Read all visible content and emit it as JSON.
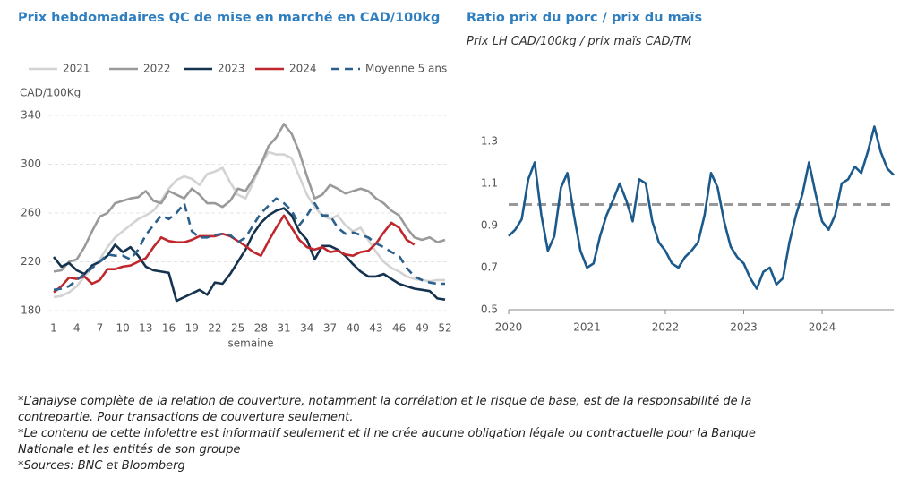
{
  "chart_data": [
    {
      "type": "line",
      "title": "Prix hebdomadaires QC de mise en marché en CAD/100kg",
      "y_label": "CAD/100Kg",
      "x_label": "semaine",
      "x": [
        1,
        2,
        3,
        4,
        5,
        6,
        7,
        8,
        9,
        10,
        11,
        12,
        13,
        14,
        15,
        16,
        17,
        18,
        19,
        20,
        21,
        22,
        23,
        24,
        25,
        26,
        27,
        28,
        29,
        30,
        31,
        32,
        33,
        34,
        35,
        36,
        37,
        38,
        39,
        40,
        41,
        42,
        43,
        44,
        45,
        46,
        47,
        48,
        49,
        50,
        51,
        52
      ],
      "xlim": [
        1,
        52
      ],
      "xticks": [
        1,
        4,
        7,
        10,
        13,
        16,
        19,
        22,
        25,
        28,
        31,
        34,
        37,
        40,
        43,
        46,
        49,
        52
      ],
      "ylim": [
        180,
        340
      ],
      "yticks": [
        180,
        220,
        260,
        300,
        340
      ],
      "grid": true,
      "series": [
        {
          "name": "2021",
          "color": "#d3d3d3",
          "dashed": false,
          "values": [
            191,
            192,
            195,
            200,
            208,
            215,
            222,
            232,
            240,
            245,
            250,
            255,
            258,
            262,
            270,
            280,
            287,
            290,
            288,
            283,
            292,
            294,
            297,
            285,
            275,
            272,
            285,
            300,
            310,
            308,
            308,
            305,
            290,
            275,
            265,
            258,
            255,
            258,
            250,
            245,
            248,
            238,
            228,
            220,
            215,
            212,
            208,
            206,
            205,
            204,
            205,
            205
          ]
        },
        {
          "name": "2022",
          "color": "#9a9a9a",
          "dashed": false,
          "values": [
            212,
            213,
            220,
            222,
            232,
            245,
            257,
            260,
            268,
            270,
            272,
            273,
            278,
            270,
            268,
            278,
            275,
            272,
            280,
            275,
            268,
            268,
            265,
            270,
            280,
            278,
            288,
            300,
            315,
            322,
            333,
            325,
            310,
            290,
            272,
            275,
            283,
            280,
            276,
            278,
            280,
            278,
            272,
            268,
            262,
            258,
            248,
            240,
            238,
            240,
            236,
            238
          ]
        },
        {
          "name": "2023",
          "color": "#15324f",
          "dashed": false,
          "values": [
            224,
            216,
            219,
            213,
            210,
            217,
            220,
            225,
            234,
            228,
            232,
            225,
            216,
            213,
            212,
            211,
            188,
            191,
            194,
            197,
            193,
            203,
            202,
            210,
            220,
            230,
            243,
            252,
            258,
            262,
            264,
            258,
            245,
            238,
            222,
            233,
            233,
            230,
            225,
            218,
            212,
            208,
            208,
            210,
            206,
            202,
            200,
            198,
            197,
            196,
            190,
            189
          ]
        },
        {
          "name": "2024",
          "color": "#c0272d",
          "dashed": false,
          "values": [
            195,
            200,
            207,
            206,
            208,
            202,
            205,
            214,
            214,
            216,
            217,
            220,
            223,
            232,
            240,
            237,
            236,
            236,
            238,
            241,
            241,
            241,
            243,
            241,
            237,
            233,
            228,
            225,
            237,
            248,
            258,
            248,
            238,
            232,
            230,
            232,
            228,
            229,
            226,
            225,
            228,
            229,
            235,
            244,
            252,
            248,
            238,
            234,
            null,
            null,
            null,
            null
          ]
        },
        {
          "name": "Moyenne 5 ans",
          "color": "#2b5f8c",
          "dashed": true,
          "values": [
            197,
            198,
            200,
            205,
            210,
            215,
            220,
            226,
            225,
            225,
            222,
            230,
            242,
            250,
            258,
            255,
            260,
            268,
            245,
            240,
            240,
            242,
            243,
            242,
            236,
            240,
            250,
            260,
            266,
            272,
            268,
            262,
            250,
            258,
            268,
            258,
            258,
            248,
            243,
            244,
            242,
            240,
            235,
            232,
            228,
            225,
            215,
            208,
            205,
            203,
            202,
            202
          ]
        }
      ]
    },
    {
      "type": "line",
      "title": "Ratio prix du porc / prix du maïs",
      "subtitle": "Prix LH CAD/100kg / prix maïs CAD/TM",
      "x": [
        2020,
        2020.083,
        2020.167,
        2020.25,
        2020.333,
        2020.417,
        2020.5,
        2020.583,
        2020.667,
        2020.75,
        2020.833,
        2020.917,
        2021,
        2021.083,
        2021.167,
        2021.25,
        2021.333,
        2021.417,
        2021.5,
        2021.583,
        2021.667,
        2021.75,
        2021.833,
        2021.917,
        2022,
        2022.083,
        2022.167,
        2022.25,
        2022.333,
        2022.417,
        2022.5,
        2022.583,
        2022.667,
        2022.75,
        2022.833,
        2022.917,
        2023,
        2023.083,
        2023.167,
        2023.25,
        2023.333,
        2023.417,
        2023.5,
        2023.583,
        2023.667,
        2023.75,
        2023.833,
        2023.917,
        2024,
        2024.083,
        2024.167,
        2024.25,
        2024.333,
        2024.417,
        2024.5,
        2024.583,
        2024.667,
        2024.75,
        2024.833,
        2024.914
      ],
      "xlim": [
        2020,
        2024.914
      ],
      "xticks": [
        2020,
        2021,
        2022,
        2023,
        2024
      ],
      "ylim": [
        0.5,
        1.4
      ],
      "yticks": [
        0.5,
        0.7,
        0.9,
        1.1,
        1.3
      ],
      "grid": false,
      "reference_line": 1,
      "reference_color": "#999999",
      "series": [
        {
          "color": "#1c5a8c",
          "dashed": false,
          "values": [
            0.85,
            0.88,
            0.93,
            1.12,
            1.2,
            0.95,
            0.78,
            0.85,
            1.08,
            1.15,
            0.95,
            0.78,
            0.7,
            0.72,
            0.85,
            0.95,
            1.02,
            1.1,
            1.02,
            0.92,
            1.12,
            1.1,
            0.92,
            0.82,
            0.78,
            0.72,
            0.7,
            0.75,
            0.78,
            0.82,
            0.95,
            1.15,
            1.08,
            0.92,
            0.8,
            0.75,
            0.72,
            0.65,
            0.6,
            0.68,
            0.7,
            0.62,
            0.65,
            0.82,
            0.95,
            1.05,
            1.2,
            1.05,
            0.92,
            0.88,
            0.95,
            1.1,
            1.12,
            1.18,
            1.15,
            1.25,
            1.37,
            1.25,
            1.17,
            1.14
          ]
        }
      ]
    }
  ],
  "notes": [
    "*L’analyse complète de la relation de couverture, notamment la corrélation et le risque de base, est de la responsabilité de la contrepartie. Pour transactions de couverture seulement.",
    "*Le contenu de cette infolettre est informatif seulement et il ne crée aucune obligation légale ou contractuelle pour la Banque Nationale et les entités de son groupe",
    "*Sources: BNC et Bloomberg"
  ]
}
